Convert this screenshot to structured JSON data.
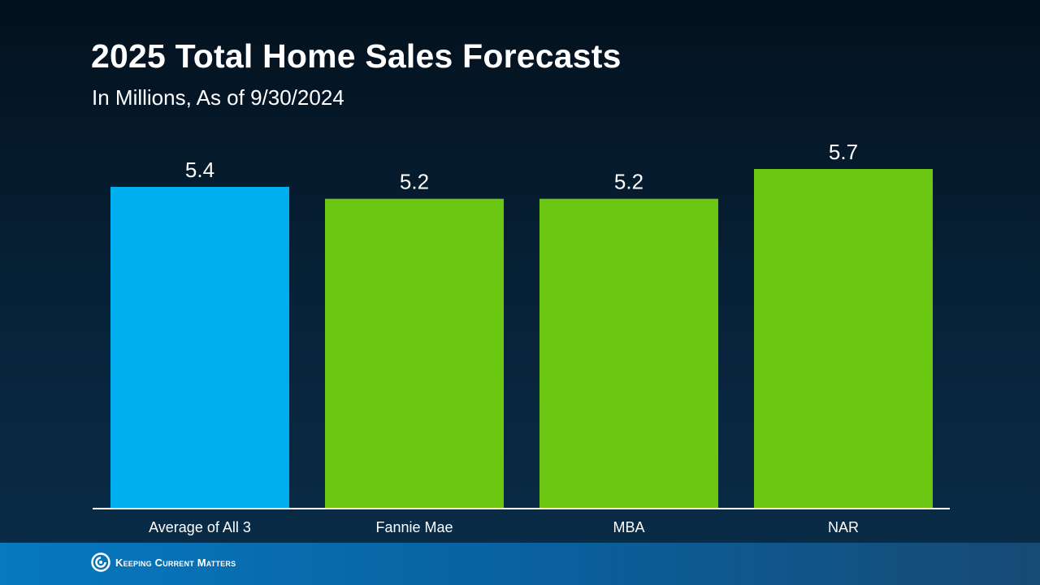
{
  "header": {
    "title": "2025 Total Home Sales Forecasts",
    "subtitle": "In Millions, As of 9/30/2024"
  },
  "chart_data": {
    "type": "bar",
    "title": "2025 Total Home Sales Forecasts",
    "subtitle": "In Millions, As of 9/30/2024",
    "xlabel": "",
    "ylabel": "",
    "categories": [
      "Average of All 3",
      "Fannie Mae",
      "MBA",
      "NAR"
    ],
    "values": [
      5.4,
      5.2,
      5.2,
      5.7
    ],
    "value_labels": [
      "5.4",
      "5.2",
      "5.2",
      "5.7"
    ],
    "bar_colors": [
      "#00aeef",
      "#6cc712",
      "#6cc712",
      "#6cc712"
    ],
    "ylim": [
      0,
      6
    ],
    "grid": false,
    "legend": "none"
  },
  "footer": {
    "brand": "Keeping Current Matters",
    "logo_icon": "kcm-swirl-icon",
    "background_color": "#0679c0"
  }
}
